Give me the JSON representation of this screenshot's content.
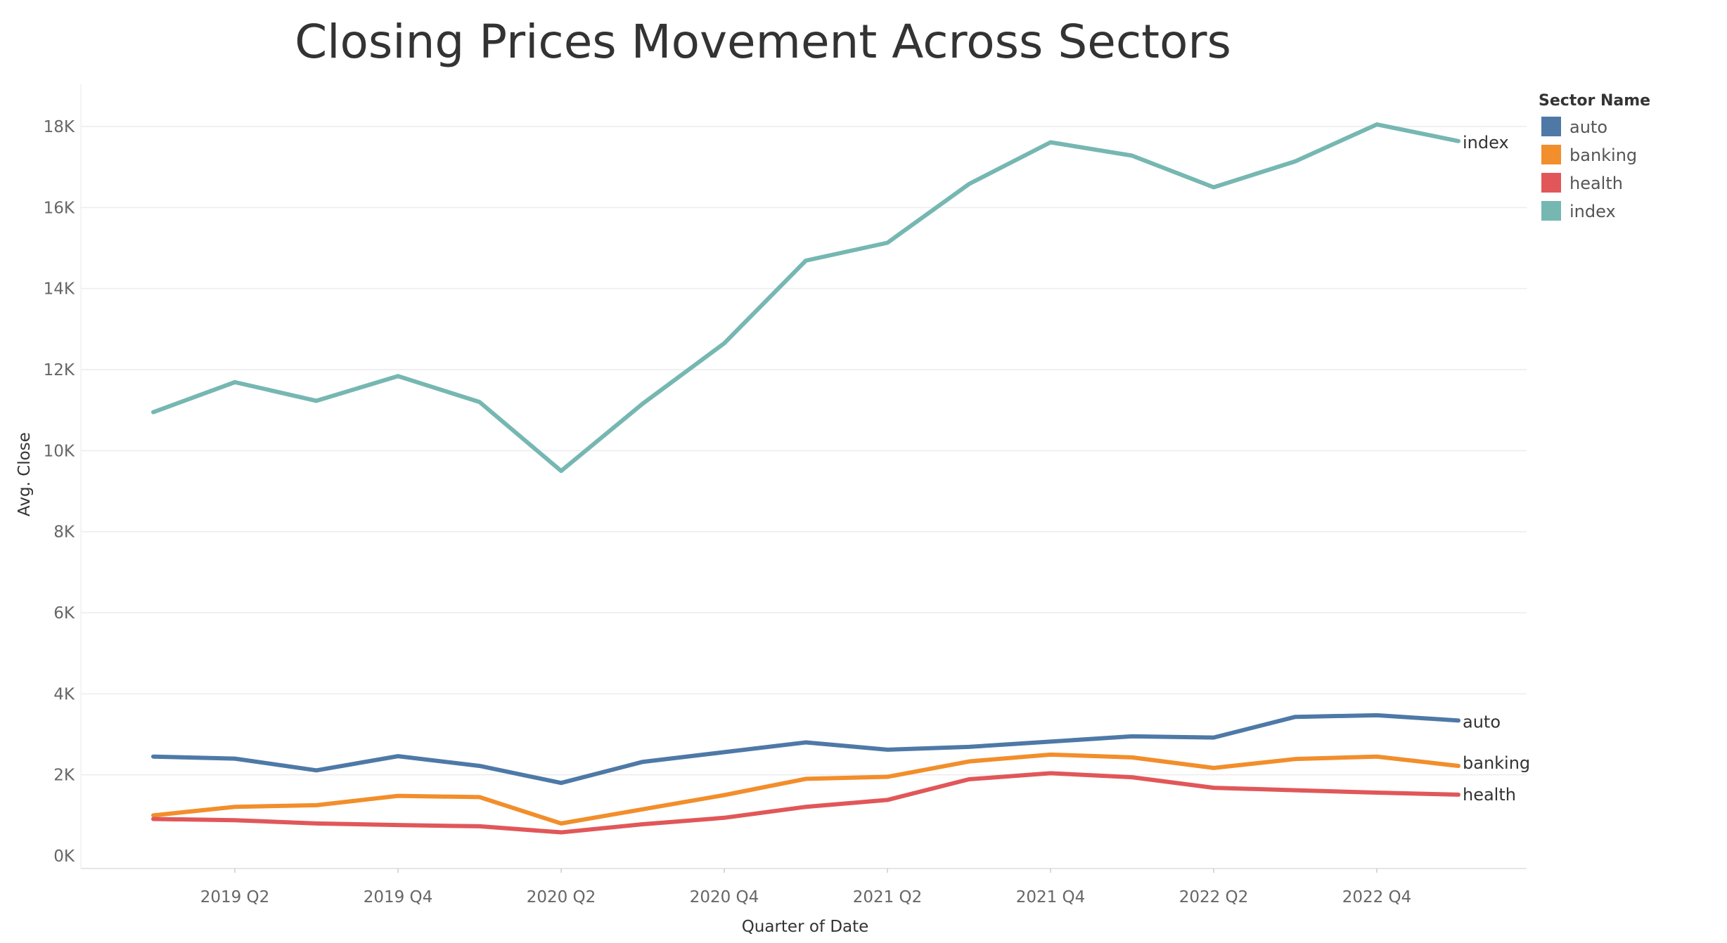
{
  "chart_data": {
    "type": "line",
    "title": "Closing Prices Movement Across Sectors",
    "xlabel": "Quarter of Date",
    "ylabel": "Avg. Close",
    "x": [
      "2019 Q1",
      "2019 Q2",
      "2019 Q3",
      "2019 Q4",
      "2020 Q1",
      "2020 Q2",
      "2020 Q3",
      "2020 Q4",
      "2021 Q1",
      "2021 Q2",
      "2021 Q3",
      "2021 Q4",
      "2022 Q1",
      "2022 Q2",
      "2022 Q3",
      "2022 Q4",
      "2023 Q1"
    ],
    "x_tick_labels": [
      "2019 Q2",
      "2019 Q4",
      "2020 Q2",
      "2020 Q4",
      "2021 Q2",
      "2021 Q4",
      "2022 Q2",
      "2022 Q4"
    ],
    "ylim": [
      0,
      19000
    ],
    "y_ticks": [
      0,
      2000,
      4000,
      6000,
      8000,
      10000,
      12000,
      14000,
      16000,
      18000
    ],
    "y_tick_labels": [
      "0K",
      "2K",
      "4K",
      "6K",
      "8K",
      "10K",
      "12K",
      "14K",
      "16K",
      "18K"
    ],
    "grid": true,
    "legend_title": "Sector Name",
    "legend_position": "top-right",
    "series": [
      {
        "name": "auto",
        "color": "#4e79a7",
        "values": [
          2450,
          2400,
          2110,
          2460,
          2220,
          1800,
          2320,
          2560,
          2800,
          2620,
          2690,
          2820,
          2950,
          2920,
          3430,
          3470,
          3340
        ]
      },
      {
        "name": "banking",
        "color": "#f28e2b",
        "values": [
          1000,
          1210,
          1250,
          1480,
          1450,
          800,
          1150,
          1500,
          1900,
          1950,
          2330,
          2500,
          2430,
          2170,
          2390,
          2450,
          2220
        ]
      },
      {
        "name": "health",
        "color": "#e15759",
        "values": [
          910,
          880,
          800,
          760,
          730,
          580,
          780,
          940,
          1210,
          1380,
          1890,
          2040,
          1940,
          1680,
          1620,
          1560,
          1510
        ]
      },
      {
        "name": "index",
        "color": "#76b7b2",
        "values": [
          10950,
          11690,
          11230,
          11840,
          11200,
          9500,
          11160,
          12650,
          14690,
          15130,
          16580,
          17610,
          17280,
          16500,
          17140,
          18050,
          17640
        ]
      }
    ]
  }
}
